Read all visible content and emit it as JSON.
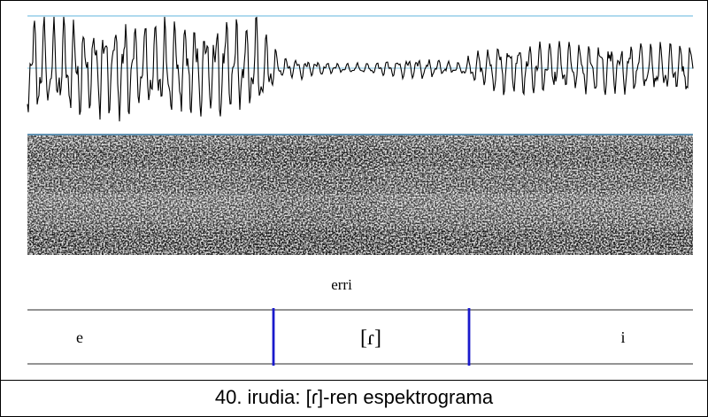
{
  "figure": {
    "word_label": "erri",
    "segments": [
      {
        "label": "e"
      },
      {
        "label": "[ɾ]"
      },
      {
        "label": "i"
      }
    ],
    "caption": "40. irudia: [ɾ]-ren espektrograma"
  },
  "colors": {
    "guide_line": "#7fc4e3",
    "waveform": "#000000",
    "boundary": "#1a1acc",
    "tier_line": "#555555"
  }
}
